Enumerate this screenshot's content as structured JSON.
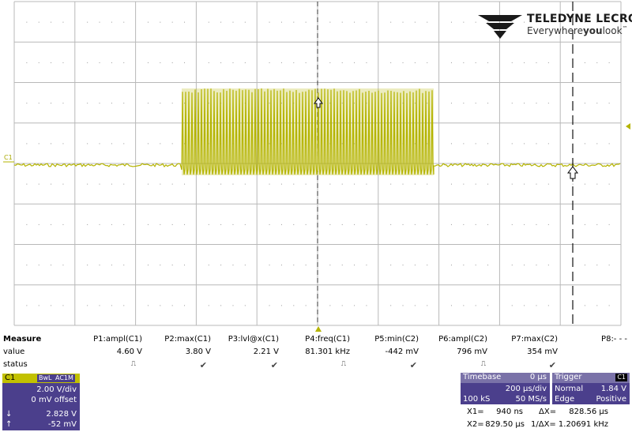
{
  "logo": {
    "brand": "TELEDYNE LECROY",
    "tagline_pre": "Everywhere",
    "tagline_bold": "you",
    "tagline_post": "look",
    "tm": "™"
  },
  "channel_marker": "C1",
  "colors": {
    "trace": "#b5b400",
    "grid": "#b8b8b8",
    "panel": "#4b3f8c",
    "panel_header": "#7a72a8",
    "channel_header": "#c2c100"
  },
  "measure": {
    "title": "Measure",
    "row_labels": [
      "value",
      "status"
    ],
    "params": [
      {
        "name": "P1:ampl(C1)",
        "value": "4.60 V",
        "status": "pulse"
      },
      {
        "name": "P2:max(C1)",
        "value": "3.80 V",
        "status": "check"
      },
      {
        "name": "P3:lvl@x(C1)",
        "value": "2.21 V",
        "status": "check"
      },
      {
        "name": "P4:freq(C1)",
        "value": "81.301 kHz",
        "status": "pulse"
      },
      {
        "name": "P5:min(C2)",
        "value": "-442 mV",
        "status": "check"
      },
      {
        "name": "P6:ampl(C2)",
        "value": "796 mV",
        "status": "pulse"
      },
      {
        "name": "P7:max(C2)",
        "value": "354 mV",
        "status": "check"
      },
      {
        "name": "P8:- - -",
        "value": "",
        "status": ""
      }
    ],
    "status_glyphs": {
      "check": "✔",
      "pulse": "⎍"
    }
  },
  "channel": {
    "name": "C1",
    "tag1": "BwL",
    "tag2": "AC1M",
    "vdiv": "2.00 V/div",
    "offset": "0 mV offset",
    "cursor_down_arrow": "↓",
    "cursor_up_arrow": "↑",
    "cursor_down": "2.828 V",
    "cursor_up": "-52 mV"
  },
  "timebase": {
    "label": "Timebase",
    "delay": "0 µs",
    "tdiv": "200 µs/div",
    "samples": "100 kS",
    "rate": "50 MS/s"
  },
  "trigger": {
    "label": "Trigger",
    "source": "C1",
    "mode": "Normal",
    "level": "1.84 V",
    "type": "Edge",
    "slope": "Positive"
  },
  "cursors": {
    "x1_label": "X1=",
    "x1": "940 ns",
    "dx_label": "ΔX=",
    "dx": "828.56 µs",
    "x2_label": "X2=",
    "x2": "829.50 µs",
    "inv_label": "1/ΔX=",
    "inv": "1.20691 kHz"
  }
}
